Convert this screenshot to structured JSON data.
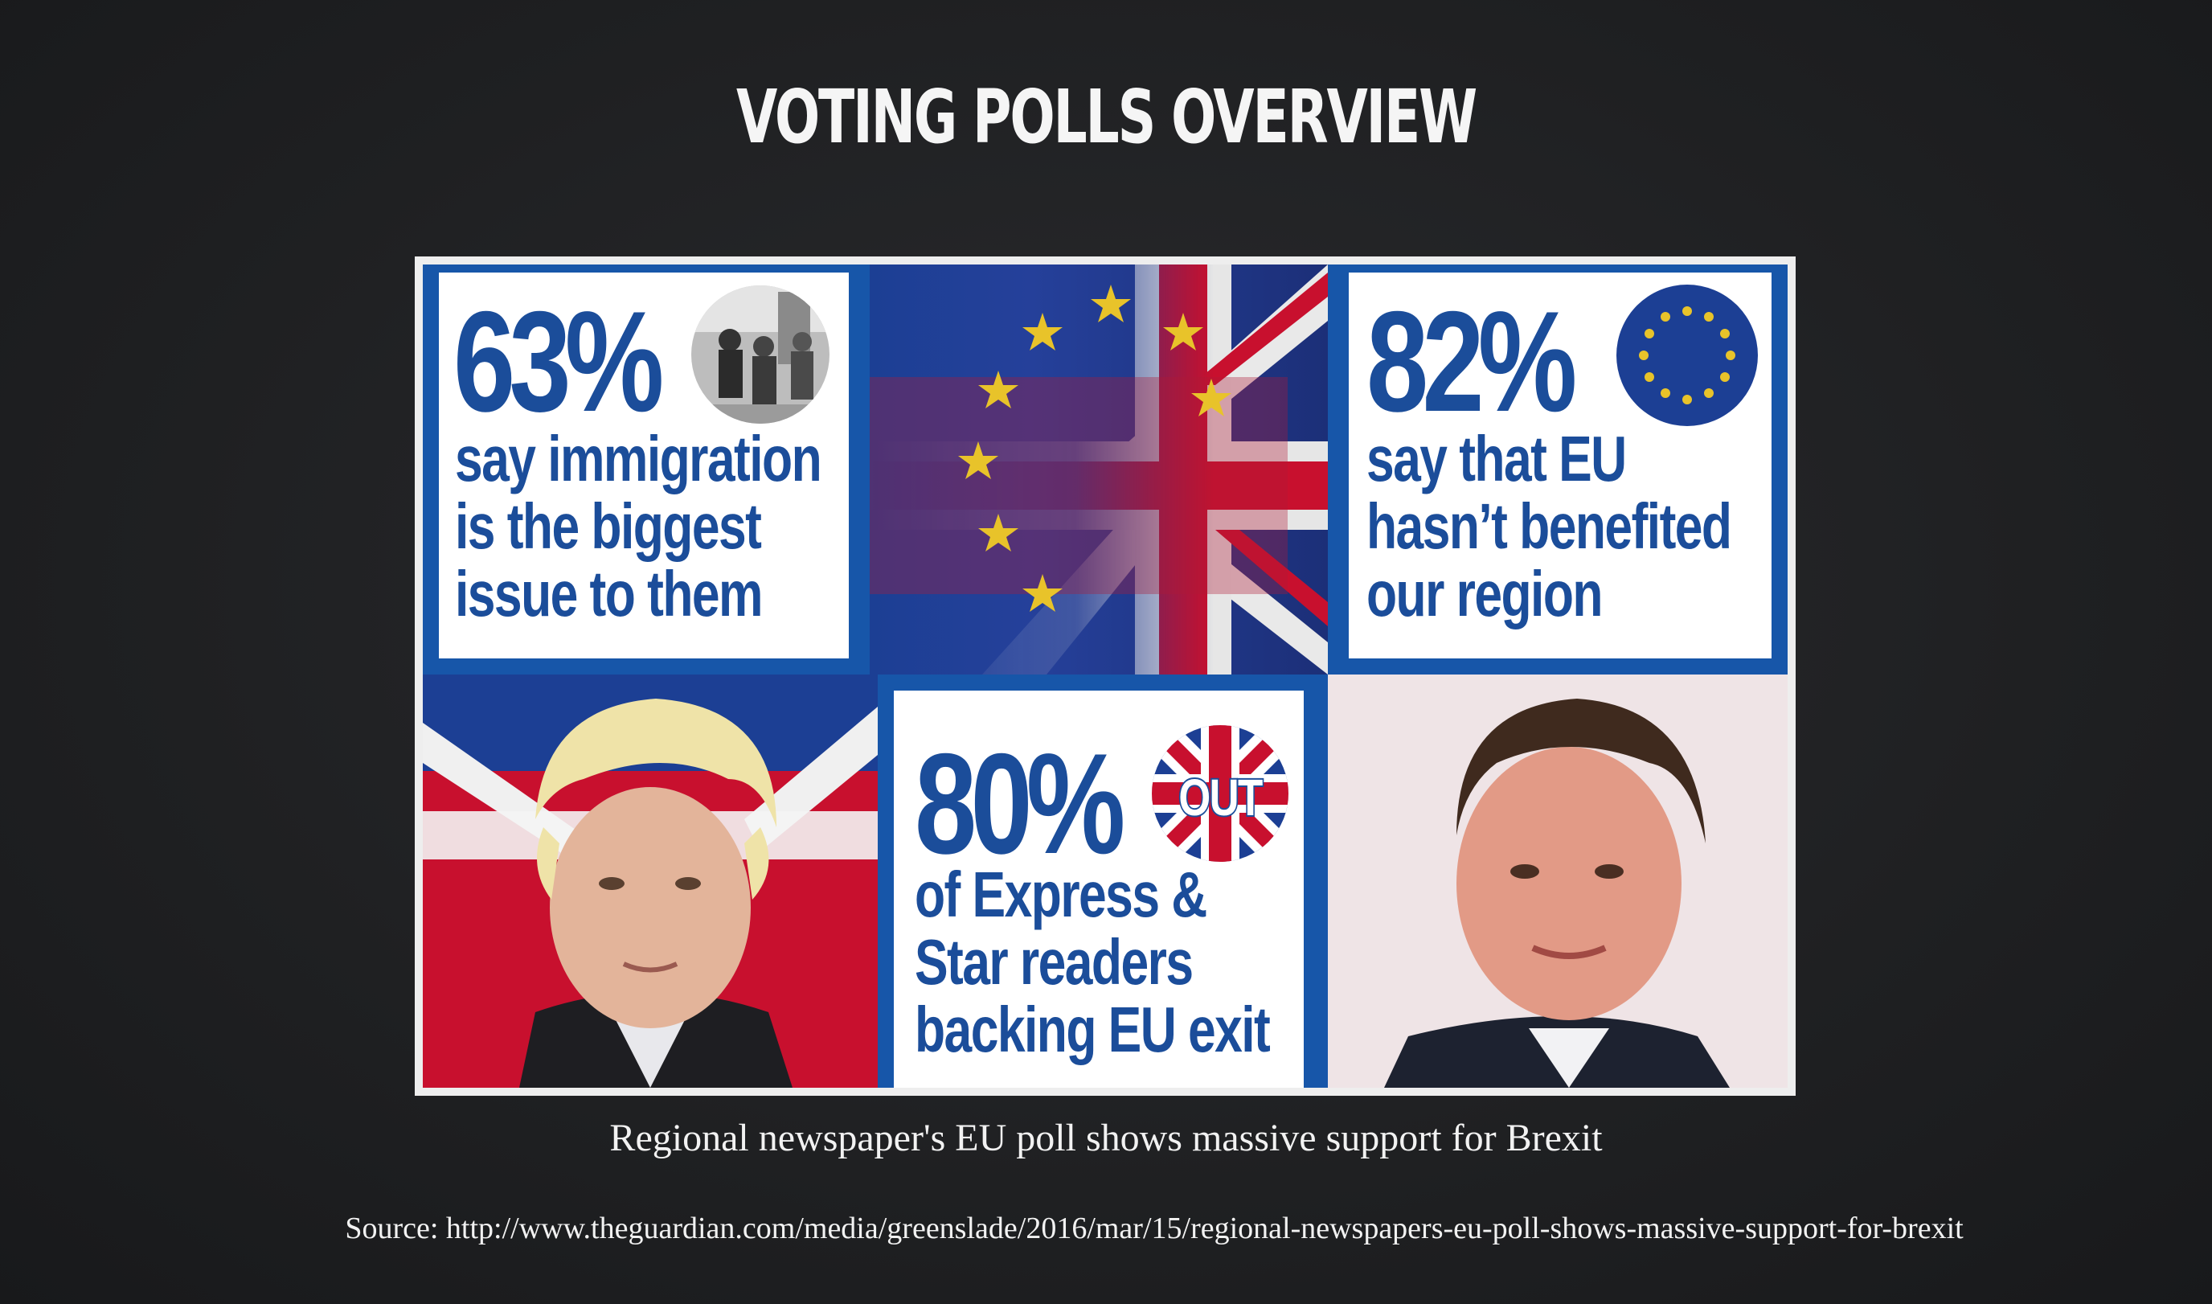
{
  "slide": {
    "title": "VOTING POLLS OVERVIEW",
    "caption": "Regional newspaper's EU poll shows massive support for Brexit",
    "source": "Source: http://www.theguardian.com/media/greenslade/2016/mar/15/regional-newspapers-eu-poll-shows-massive-support-for-brexit"
  },
  "infographic": {
    "stat_immigration": {
      "percent": "63%",
      "line1": "say immigration",
      "line2": "is the biggest",
      "line3": "issue to them"
    },
    "stat_eu_benefit": {
      "percent": "82%",
      "line1": "say that EU",
      "line2": "hasn’t benefited",
      "line3": "our region"
    },
    "stat_readers": {
      "percent": "80%",
      "badge": "OUT",
      "line1": "of Express &",
      "line2": "Star readers",
      "line3": "backing EU exit"
    }
  },
  "colors": {
    "background": "#1f2022",
    "brand_blue": "#1b4d9a",
    "eu_blue": "#1c3f94",
    "eu_star": "#e8c32a",
    "union_red": "#c8102e"
  }
}
